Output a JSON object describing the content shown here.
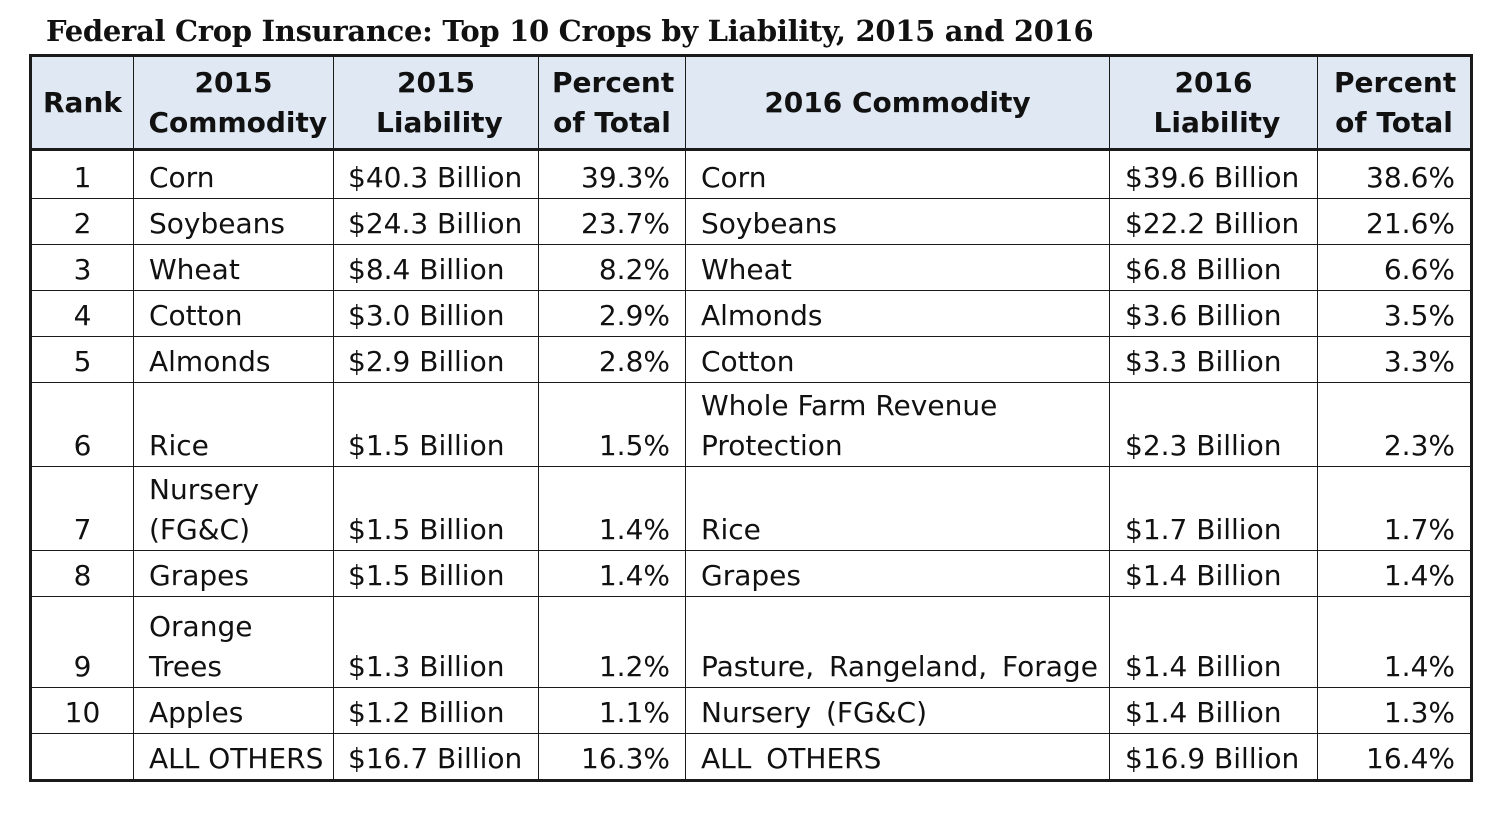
{
  "title": "Federal Crop Insurance:  Top 10 Crops by Liability, 2015 and 2016",
  "headers": {
    "rank": "Rank",
    "commodity_2015": "2015 Commodity",
    "liability_2015": "2015 Liability",
    "percent_2015": "Percent of Total",
    "commodity_2016": "2016 Commodity",
    "liability_2016": "2016 Liability",
    "percent_2016": "Percent of Total"
  },
  "rows": [
    {
      "rank": "1",
      "c15": "Corn",
      "l15": "$40.3 Billion",
      "p15": "39.3%",
      "c16": "Corn",
      "l16": "$39.6 Billion",
      "p16": "38.6%"
    },
    {
      "rank": "2",
      "c15": "Soybeans",
      "l15": "$24.3 Billion",
      "p15": "23.7%",
      "c16": "Soybeans",
      "l16": "$22.2 Billion",
      "p16": "21.6%"
    },
    {
      "rank": "3",
      "c15": "Wheat",
      "l15": "$8.4 Billion",
      "p15": "8.2%",
      "c16": "Wheat",
      "l16": "$6.8 Billion",
      "p16": "6.6%"
    },
    {
      "rank": "4",
      "c15": "Cotton",
      "l15": "$3.0 Billion",
      "p15": "2.9%",
      "c16": "Almonds",
      "l16": "$3.6 Billion",
      "p16": "3.5%"
    },
    {
      "rank": "5",
      "c15": "Almonds",
      "l15": "$2.9 Billion",
      "p15": "2.8%",
      "c16": "Cotton",
      "l16": "$3.3 Billion",
      "p16": "3.3%"
    },
    {
      "rank": "6",
      "c15": "Rice",
      "l15": "$1.5 Billion",
      "p15": "1.5%",
      "c16": "Whole Farm Revenue Protection",
      "l16": "$2.3 Billion",
      "p16": "2.3%"
    },
    {
      "rank": "7",
      "c15": "Nursery (FG&C)",
      "l15": "$1.5 Billion",
      "p15": "1.4%",
      "c16": "Rice",
      "l16": "$1.7 Billion",
      "p16": "1.7%"
    },
    {
      "rank": "8",
      "c15": "Grapes",
      "l15": "$1.5 Billion",
      "p15": "1.4%",
      "c16": "Grapes",
      "l16": "$1.4 Billion",
      "p16": "1.4%"
    },
    {
      "rank": "9",
      "c15": "Orange Trees",
      "l15": "$1.3 Billion",
      "p15": "1.2%",
      "c16": "Pasture, Rangeland, Forage",
      "l16": "$1.4 Billion",
      "p16": "1.4%"
    },
    {
      "rank": "10",
      "c15": "Apples",
      "l15": "$1.2 Billion",
      "p15": "1.1%",
      "c16": "Nursery (FG&C)",
      "l16": "$1.4 Billion",
      "p16": "1.3%"
    },
    {
      "rank": "",
      "c15": "ALL OTHERS",
      "l15": "$16.7 Billion",
      "p15": "16.3%",
      "c16": "ALL OTHERS",
      "l16": "$16.9 Billion",
      "p16": "16.4%"
    }
  ]
}
